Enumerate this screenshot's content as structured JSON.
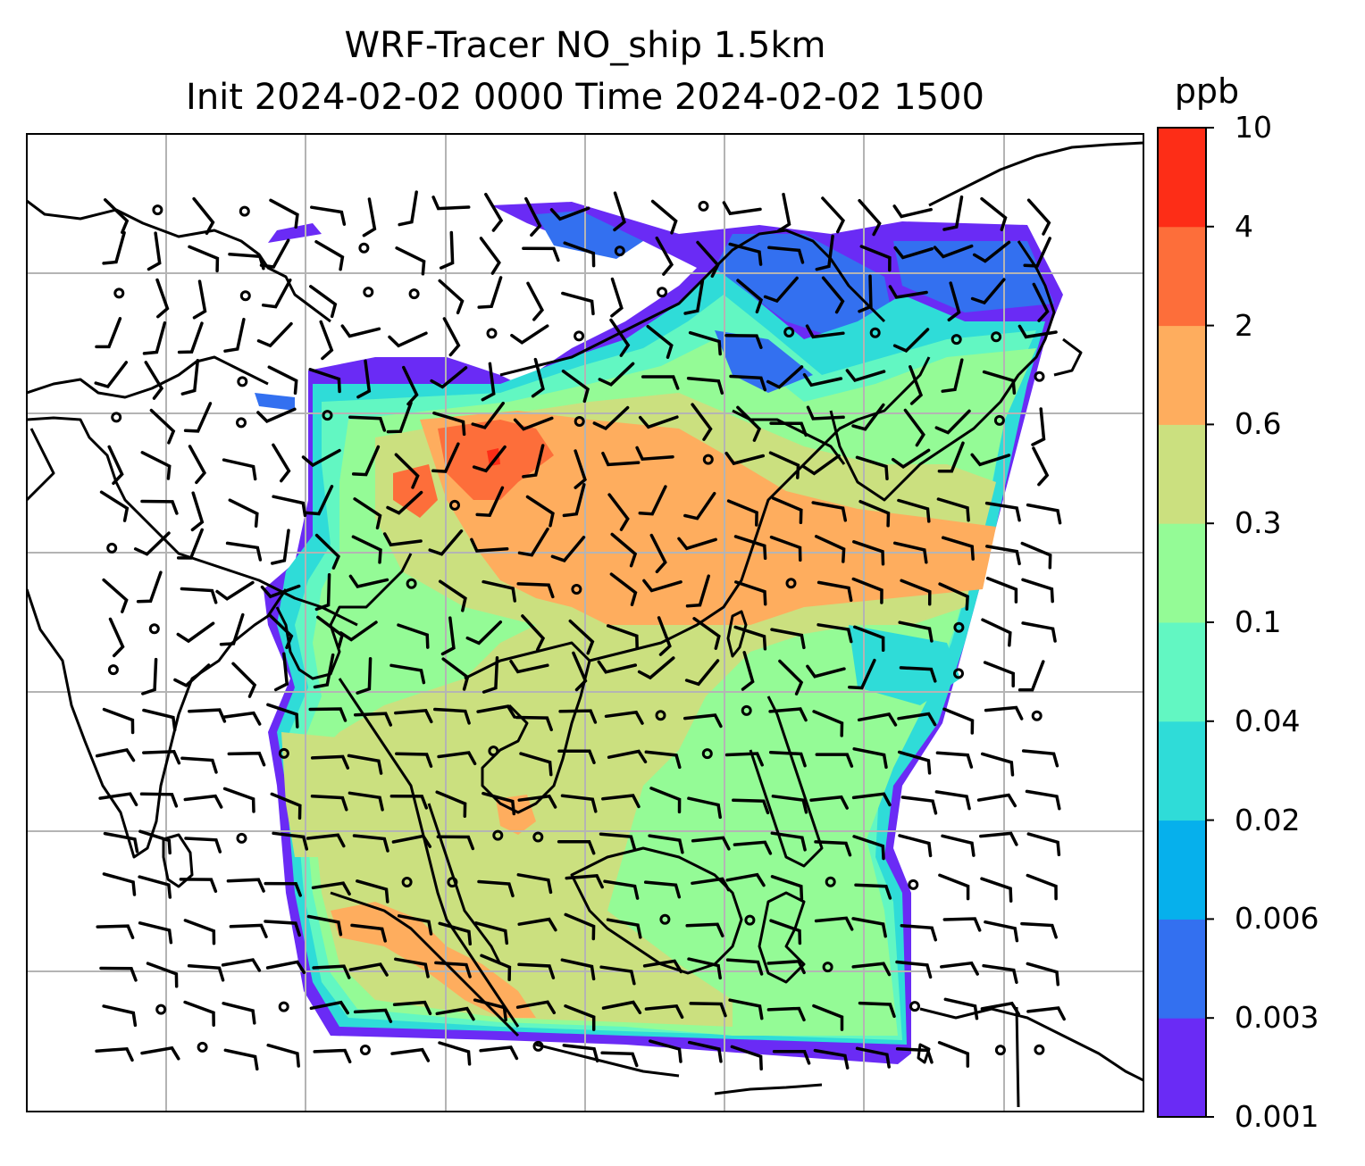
{
  "title": {
    "line1": "WRF-Tracer NO_ship 1.5km",
    "line2": "Init 2024-02-02 0000 Time 2024-02-02 1500"
  },
  "colorbar": {
    "unit": "ppb",
    "levels": [
      "0.001",
      "0.003",
      "0.006",
      "0.02",
      "0.04",
      "0.1",
      "0.3",
      "0.6",
      "2",
      "4",
      "10"
    ],
    "colors": [
      "#6a2bf5",
      "#3370f0",
      "#06b0ec",
      "#2fdcd8",
      "#62f7c2",
      "#94fb96",
      "#cbe07f",
      "#fead5e",
      "#fd6e3a",
      "#fd2d17"
    ]
  },
  "map": {
    "frame_color": "#000000",
    "grid_color": "#b4b4b4",
    "coastline_color": "#000000",
    "wind_barb_color": "#000000",
    "field": "NO_ship tracer concentration",
    "layers": [
      "filled-concentration-field",
      "coastlines",
      "lat-lon-gridlines",
      "wind-barbs",
      "calm-wind-circles"
    ]
  }
}
